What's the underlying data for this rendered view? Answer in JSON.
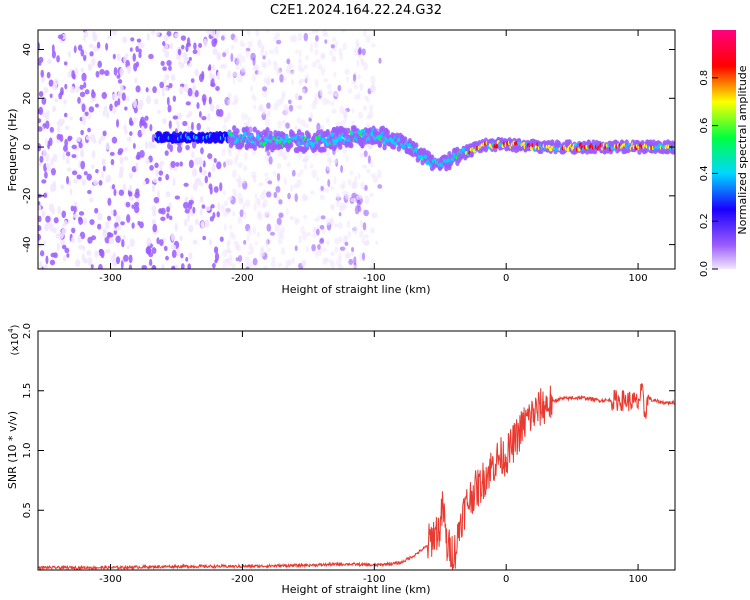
{
  "title": "C2E1.2024.164.22.24.G32",
  "chart_data": [
    {
      "type": "heatmap",
      "xlabel": "Height of straight line (km)",
      "ylabel": "Frequency (Hz)",
      "xlim": [
        -355,
        128
      ],
      "ylim": [
        -50,
        48
      ],
      "xticks": [
        -300,
        -200,
        -100,
        0,
        100
      ],
      "yticks": [
        -40,
        -20,
        0,
        20,
        40
      ],
      "colorbar": {
        "label": "Normalized spectral amplitude",
        "range": [
          0.0,
          1.0
        ],
        "ticks": [
          0.0,
          0.2,
          0.4,
          0.6,
          0.8
        ],
        "tick_labels": [
          "0.0",
          "0.2",
          "0.4",
          "0.6",
          "0.8"
        ],
        "colormap": [
          "#f2e6ff",
          "#9b5cff",
          "#1a00ff",
          "#00d8ff",
          "#00ff40",
          "#ffff00",
          "#ff0000",
          "#ff0080"
        ]
      },
      "ridge": {
        "x": [
          -210,
          -180,
          -150,
          -120,
          -100,
          -80,
          -65,
          -55,
          -45,
          -30,
          -15,
          0,
          30,
          60,
          100,
          128
        ],
        "y": [
          4,
          3,
          2,
          4,
          5,
          2,
          -3,
          -7,
          -6,
          -2,
          1,
          1,
          0,
          0,
          0,
          0
        ]
      },
      "grid": false
    },
    {
      "type": "line",
      "xlabel": "Height of straight line (km)",
      "ylabel": "SNR (10 * v/v)",
      "y_multiplier_label": "(x10",
      "y_multiplier_exp": "4",
      "y_multiplier_close": ")",
      "xlim": [
        -355,
        128
      ],
      "ylim": [
        0,
        2.0
      ],
      "xticks": [
        -300,
        -200,
        -100,
        0,
        100
      ],
      "yticks": [
        0.5,
        1.0,
        1.5,
        2.0
      ],
      "ytick_labels": [
        "0.5",
        "1.0",
        "1.5",
        "2.0"
      ],
      "series": [
        {
          "color": "#e83a30",
          "x": [
            -355,
            -300,
            -250,
            -200,
            -150,
            -120,
            -100,
            -80,
            -70,
            -60,
            -55,
            -50,
            -48,
            -45,
            -40,
            -38,
            -35,
            -30,
            -25,
            -20,
            -15,
            -10,
            -5,
            0,
            5,
            10,
            15,
            20,
            25,
            30,
            40,
            50,
            60,
            70,
            80,
            85,
            90,
            95,
            100,
            103,
            105,
            108,
            110,
            115,
            120,
            128
          ],
          "y": [
            0.02,
            0.02,
            0.03,
            0.03,
            0.04,
            0.05,
            0.04,
            0.06,
            0.12,
            0.2,
            0.3,
            0.35,
            0.55,
            0.2,
            0.15,
            0.18,
            0.4,
            0.55,
            0.65,
            0.7,
            0.8,
            0.88,
            0.95,
            0.95,
            1.05,
            1.15,
            1.25,
            1.3,
            1.35,
            1.38,
            1.43,
            1.44,
            1.44,
            1.42,
            1.42,
            1.42,
            1.42,
            1.41,
            1.4,
            1.5,
            1.3,
            1.45,
            1.42,
            1.41,
            1.4,
            1.4
          ]
        }
      ]
    }
  ]
}
